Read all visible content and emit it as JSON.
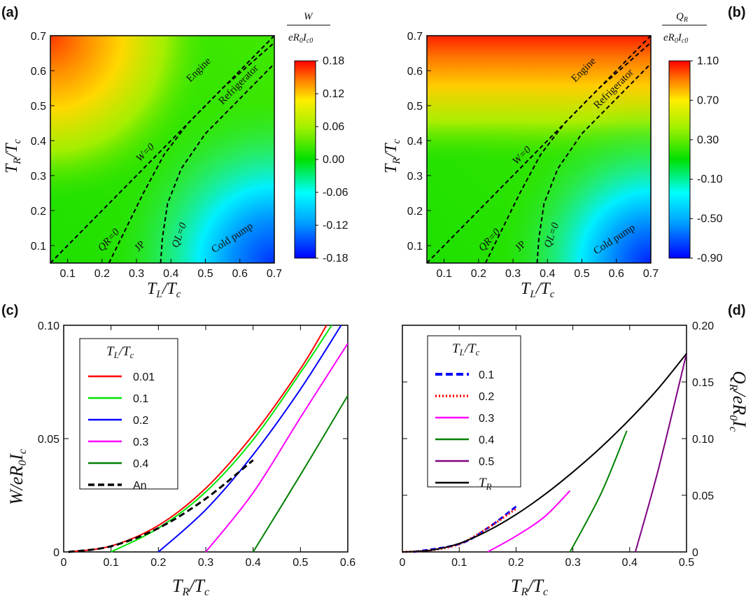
{
  "panel_labels": [
    "(a)",
    "(b)",
    "(c)",
    "(d)"
  ],
  "chart_data": [
    {
      "type": "heatmap",
      "panel": "(a)",
      "xlabel": "T_L/T_c",
      "ylabel": "T_R/T_c",
      "xlim": [
        0.05,
        0.7
      ],
      "ylim": [
        0.05,
        0.7
      ],
      "xticks": [
        "0.1",
        "0.2",
        "0.3",
        "0.4",
        "0.5",
        "0.6",
        "0.7"
      ],
      "yticks": [
        "0.1",
        "0.2",
        "0.3",
        "0.4",
        "0.5",
        "0.6",
        "0.7"
      ],
      "colorbar": {
        "title": "W / eR0Ic0",
        "min": -0.18,
        "max": 0.18,
        "ticks": [
          "0.18",
          "0.12",
          "0.06",
          "0.00",
          "-0.06",
          "-0.12",
          "-0.18"
        ]
      },
      "contours": {
        "W=0": [
          [
            0.05,
            0.05
          ],
          [
            0.7,
            0.7
          ]
        ],
        "QR=0": [
          [
            0.22,
            0.05
          ],
          [
            0.26,
            0.13
          ],
          [
            0.32,
            0.25
          ],
          [
            0.38,
            0.36
          ],
          [
            0.45,
            0.45
          ],
          [
            0.55,
            0.55
          ],
          [
            0.7,
            0.68
          ]
        ],
        "QL=0": [
          [
            0.37,
            0.05
          ],
          [
            0.375,
            0.12
          ],
          [
            0.39,
            0.22
          ],
          [
            0.43,
            0.32
          ],
          [
            0.5,
            0.42
          ],
          [
            0.6,
            0.52
          ],
          [
            0.7,
            0.62
          ]
        ]
      },
      "region_labels": [
        "Engine",
        "Refrigerator",
        "W=0",
        "QR=0",
        "JP",
        "QL=0",
        "Cold pump"
      ]
    },
    {
      "type": "heatmap",
      "panel": "(b)",
      "xlabel": "T_L/T_c",
      "ylabel": "T_R/T_c",
      "xlim": [
        0.05,
        0.7
      ],
      "ylim": [
        0.05,
        0.7
      ],
      "xticks": [
        "0.1",
        "0.2",
        "0.3",
        "0.4",
        "0.5",
        "0.6",
        "0.7"
      ],
      "yticks": [
        "0.1",
        "0.2",
        "0.3",
        "0.4",
        "0.5",
        "0.6",
        "0.7"
      ],
      "colorbar": {
        "title": "Q_R / eR0Ic0",
        "min": -0.9,
        "max": 1.1,
        "ticks": [
          "1.10",
          "0.70",
          "0.30",
          "-0.10",
          "-0.50",
          "-0.90"
        ]
      },
      "contours": {
        "W=0": [
          [
            0.05,
            0.05
          ],
          [
            0.7,
            0.7
          ]
        ],
        "QR=0": [
          [
            0.22,
            0.05
          ],
          [
            0.26,
            0.13
          ],
          [
            0.32,
            0.25
          ],
          [
            0.38,
            0.36
          ],
          [
            0.45,
            0.45
          ],
          [
            0.55,
            0.55
          ],
          [
            0.7,
            0.68
          ]
        ],
        "QL=0": [
          [
            0.37,
            0.05
          ],
          [
            0.375,
            0.12
          ],
          [
            0.39,
            0.22
          ],
          [
            0.43,
            0.32
          ],
          [
            0.5,
            0.42
          ],
          [
            0.6,
            0.52
          ],
          [
            0.7,
            0.62
          ]
        ]
      },
      "region_labels": [
        "Engine",
        "Refrigerator",
        "W=0",
        "QR=0",
        "JP",
        "QL=0",
        "Cold pump"
      ]
    },
    {
      "type": "line",
      "panel": "(c)",
      "xlabel": "T_R/T_c",
      "ylabel": "W/eR0Ic",
      "xlim": [
        0,
        0.6
      ],
      "ylim": [
        0,
        0.1
      ],
      "xticks": [
        "0",
        "0.1",
        "0.2",
        "0.3",
        "0.4",
        "0.5",
        "0.6"
      ],
      "yticks": [
        "0",
        "0.05",
        "0.10"
      ],
      "legend_title": "T_L/T_c",
      "series": [
        {
          "name": "0.01",
          "color": "#ff0000",
          "x": [
            0.01,
            0.1,
            0.2,
            0.3,
            0.4,
            0.5,
            0.555
          ],
          "y": [
            0,
            0.0026,
            0.0117,
            0.0281,
            0.0517,
            0.0808,
            0.1
          ]
        },
        {
          "name": "0.1",
          "color": "#00e600",
          "x": [
            0.1,
            0.2,
            0.3,
            0.4,
            0.5,
            0.566
          ],
          "y": [
            0,
            0.0105,
            0.0265,
            0.0495,
            0.0791,
            0.1
          ]
        },
        {
          "name": "0.2",
          "color": "#0000ff",
          "x": [
            0.2,
            0.3,
            0.4,
            0.5,
            0.586
          ],
          "y": [
            0,
            0.0186,
            0.0429,
            0.0718,
            0.1
          ]
        },
        {
          "name": "0.3",
          "color": "#ff00ff",
          "x": [
            0.3,
            0.4,
            0.5,
            0.6
          ],
          "y": [
            0,
            0.0261,
            0.0593,
            0.092
          ]
        },
        {
          "name": "0.4",
          "color": "#008000",
          "x": [
            0.4,
            0.5,
            0.6
          ],
          "y": [
            0,
            0.034,
            0.069
          ]
        },
        {
          "name": "An",
          "color": "#000000",
          "dashed": true,
          "x": [
            0.01,
            0.1,
            0.2,
            0.3,
            0.4
          ],
          "y": [
            0,
            0.0025,
            0.0105,
            0.0235,
            0.0405
          ]
        }
      ]
    },
    {
      "type": "line",
      "panel": "(d)",
      "xlabel": "T_R/T_c",
      "ylabel": "Q_R/eR0Ic",
      "xlim": [
        0,
        0.5
      ],
      "ylim": [
        0,
        0.2
      ],
      "xticks": [
        "0",
        "0.1",
        "0.2",
        "0.3",
        "0.4",
        "0.5"
      ],
      "yticks": [
        "0",
        "0.05",
        "0.10",
        "0.15",
        "0.20"
      ],
      "legend_title": "T_L/T_c",
      "series": [
        {
          "name": "0.1",
          "color": "#0000ff",
          "style": "dashed",
          "x": [
            0.02,
            0.1,
            0.15,
            0.2
          ],
          "y": [
            0,
            0.007,
            0.021,
            0.04
          ]
        },
        {
          "name": "0.2",
          "color": "#ff0000",
          "style": "dotted",
          "x": [
            0.0,
            0.05,
            0.1,
            0.15,
            0.2
          ],
          "y": [
            0,
            0.0015,
            0.007,
            0.021,
            0.038
          ]
        },
        {
          "name": "0.3",
          "color": "#ff00ff",
          "x": [
            0.15,
            0.2,
            0.25,
            0.295
          ],
          "y": [
            0,
            0.014,
            0.031,
            0.054
          ]
        },
        {
          "name": "0.4",
          "color": "#008000",
          "x": [
            0.295,
            0.35,
            0.395
          ],
          "y": [
            0,
            0.052,
            0.107
          ]
        },
        {
          "name": "0.5",
          "color": "#800080",
          "x": [
            0.41,
            0.45,
            0.5
          ],
          "y": [
            0,
            0.072,
            0.175
          ]
        },
        {
          "name": "T_R",
          "color": "#000000",
          "x": [
            0,
            0.05,
            0.1,
            0.15,
            0.2,
            0.25,
            0.3,
            0.35,
            0.4,
            0.45,
            0.5
          ],
          "y": [
            0,
            0.0015,
            0.0075,
            0.0185,
            0.033,
            0.0505,
            0.0705,
            0.0925,
            0.117,
            0.144,
            0.175
          ]
        }
      ]
    }
  ]
}
